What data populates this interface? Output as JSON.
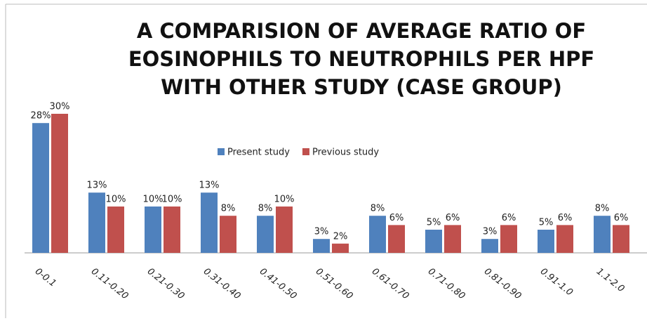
{
  "chart_data": {
    "type": "bar",
    "title": [
      "A COMPARISION OF AVERAGE RATIO OF",
      "EOSINOPHILS TO NEUTROPHILS PER HPF",
      "WITH OTHER STUDY (CASE GROUP)"
    ],
    "categories": [
      "0-0.1",
      "0.11-0.20",
      "0.21-0.30",
      "0.31-0.40",
      "0.41-0.50",
      "0.51-0.60",
      "0.61-0.70",
      "0.71-0.80",
      "0.81-0.90",
      "0.91-1.0",
      "1.1-2.0"
    ],
    "series": [
      {
        "name": "Present study",
        "color": "#4f81bd",
        "values": [
          28,
          13,
          10,
          13,
          8,
          3,
          8,
          5,
          3,
          5,
          8
        ],
        "value_labels": [
          "28%",
          "13%",
          "10%",
          "13%",
          "8%",
          "3%",
          "8%",
          "5%",
          "3%",
          "5%",
          "8%"
        ]
      },
      {
        "name": "Previous study",
        "color": "#c0504d",
        "values": [
          30,
          10,
          10,
          8,
          10,
          2,
          6,
          6,
          6,
          6,
          6
        ],
        "value_labels": [
          "30%",
          "10%",
          "10%",
          "8%",
          "10%",
          "2%",
          "6%",
          "6%",
          "6%",
          "6%",
          "6%"
        ]
      }
    ],
    "ylim": [
      0,
      30
    ]
  }
}
